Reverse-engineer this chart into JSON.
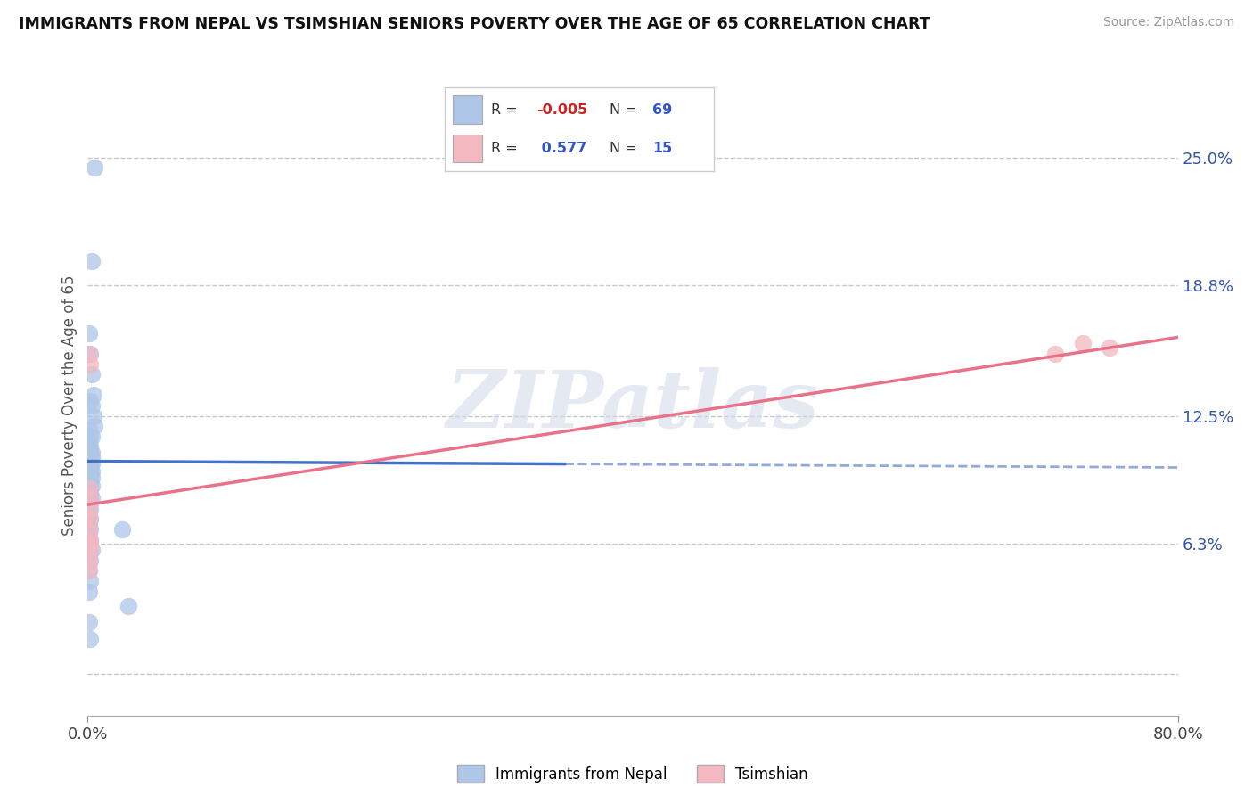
{
  "title": "IMMIGRANTS FROM NEPAL VS TSIMSHIAN SENIORS POVERTY OVER THE AGE OF 65 CORRELATION CHART",
  "source": "Source: ZipAtlas.com",
  "ylabel": "Seniors Poverty Over the Age of 65",
  "watermark": "ZIPatlas",
  "legend_labels": [
    "Immigrants from Nepal",
    "Tsimshian"
  ],
  "R_nepal": -0.005,
  "N_nepal": 69,
  "R_tsimshian": 0.577,
  "N_tsimshian": 15,
  "xlim": [
    0.0,
    0.8
  ],
  "ylim": [
    -0.02,
    0.28
  ],
  "yticks": [
    0.0,
    0.063,
    0.125,
    0.188,
    0.25
  ],
  "ytick_labels": [
    "",
    "6.3%",
    "12.5%",
    "18.8%",
    "25.0%"
  ],
  "xticks": [
    0.0,
    0.8
  ],
  "xtick_labels": [
    "0.0%",
    "80.0%"
  ],
  "color_nepal": "#aec6e8",
  "color_tsimshian": "#f4b8c1",
  "trend_color_nepal": "#4472c4",
  "trend_color_tsimshian": "#e8728a",
  "background_color": "#ffffff",
  "grid_color": "#c8c8c8",
  "nepal_x": [
    0.005,
    0.003,
    0.001,
    0.002,
    0.003,
    0.004,
    0.002,
    0.003,
    0.004,
    0.005,
    0.001,
    0.002,
    0.003,
    0.001,
    0.002,
    0.001,
    0.002,
    0.003,
    0.001,
    0.002,
    0.003,
    0.001,
    0.002,
    0.001,
    0.002,
    0.001,
    0.002,
    0.003,
    0.001,
    0.002,
    0.001,
    0.002,
    0.001,
    0.002,
    0.003,
    0.001,
    0.002,
    0.001,
    0.002,
    0.001,
    0.003,
    0.002,
    0.001,
    0.002,
    0.003,
    0.001,
    0.002,
    0.001,
    0.003,
    0.002,
    0.001,
    0.002,
    0.001,
    0.002,
    0.001,
    0.002,
    0.001,
    0.002,
    0.001,
    0.003,
    0.001,
    0.002,
    0.001,
    0.002,
    0.001,
    0.025,
    0.03,
    0.001,
    0.002
  ],
  "nepal_y": [
    0.245,
    0.2,
    0.165,
    0.155,
    0.145,
    0.135,
    0.132,
    0.13,
    0.125,
    0.12,
    0.118,
    0.115,
    0.115,
    0.112,
    0.11,
    0.108,
    0.108,
    0.107,
    0.107,
    0.106,
    0.105,
    0.104,
    0.104,
    0.103,
    0.103,
    0.102,
    0.102,
    0.102,
    0.101,
    0.101,
    0.1,
    0.1,
    0.099,
    0.099,
    0.098,
    0.098,
    0.097,
    0.097,
    0.096,
    0.096,
    0.095,
    0.094,
    0.093,
    0.092,
    0.091,
    0.09,
    0.088,
    0.086,
    0.085,
    0.083,
    0.082,
    0.08,
    0.078,
    0.075,
    0.073,
    0.07,
    0.067,
    0.065,
    0.062,
    0.06,
    0.058,
    0.055,
    0.05,
    0.045,
    0.04,
    0.07,
    0.033,
    0.025,
    0.017
  ],
  "tsimshian_x": [
    0.001,
    0.002,
    0.001,
    0.002,
    0.001,
    0.002,
    0.001,
    0.002,
    0.001,
    0.002,
    0.001,
    0.001,
    0.71,
    0.73,
    0.75
  ],
  "tsimshian_y": [
    0.155,
    0.15,
    0.09,
    0.085,
    0.08,
    0.075,
    0.07,
    0.065,
    0.063,
    0.06,
    0.055,
    0.05,
    0.155,
    0.16,
    0.158
  ],
  "nepal_trend_x0": 0.0,
  "nepal_trend_y0": 0.103,
  "nepal_trend_x1": 0.8,
  "nepal_trend_y1": 0.1,
  "tsim_trend_x0": 0.0,
  "tsim_trend_y0": 0.082,
  "tsim_trend_x1": 0.8,
  "tsim_trend_y1": 0.163
}
